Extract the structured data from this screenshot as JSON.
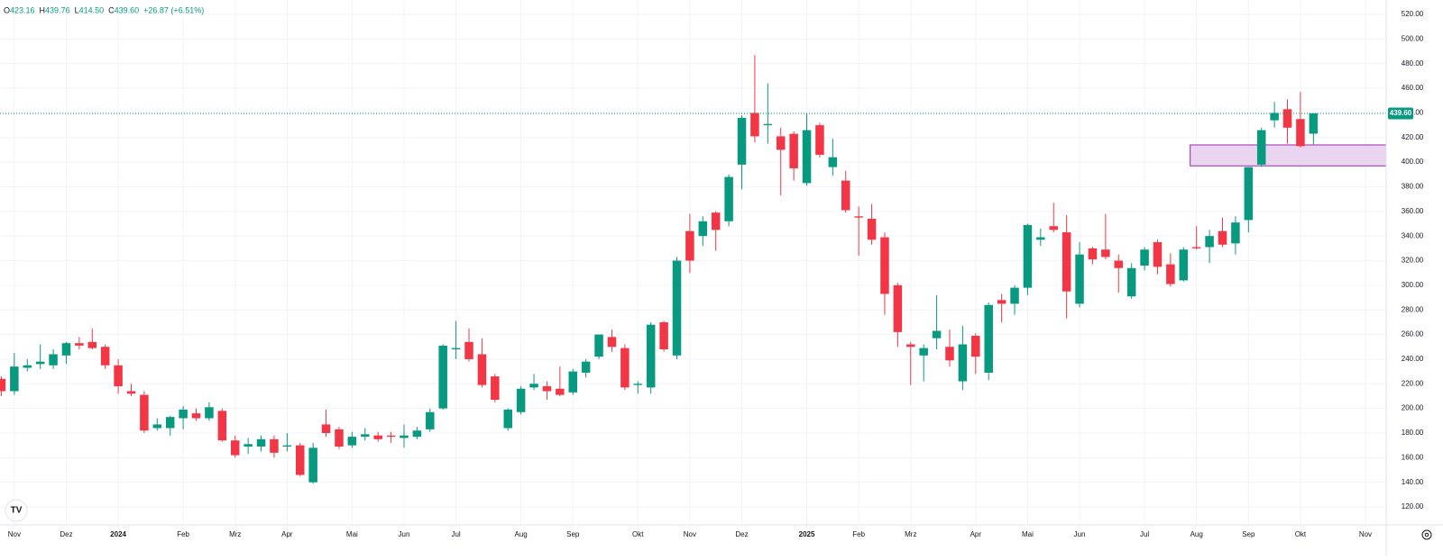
{
  "chart_data": {
    "type": "candlestick",
    "header": [
      {
        "key": "O",
        "value": "423.16"
      },
      {
        "key": "H",
        "value": "439.76"
      },
      {
        "key": "L",
        "value": "414.50"
      },
      {
        "key": "C",
        "value": "439.60"
      }
    ],
    "change": "+26.87 (+6.51%)",
    "up_color": "#089981",
    "down_color": "#f23645",
    "open": [
      224,
      214,
      233,
      236,
      235,
      243,
      253,
      254,
      250,
      235,
      214,
      211,
      184,
      184,
      192,
      196,
      192,
      198,
      174,
      169,
      169,
      175,
      169,
      170,
      140,
      187,
      183,
      170,
      177,
      178,
      178,
      176,
      177,
      183,
      200,
      248,
      254,
      244,
      226,
      184,
      197,
      217,
      218,
      216,
      213,
      229,
      242,
      258,
      249,
      219,
      217,
      270,
      243,
      344,
      340,
      359,
      352,
      398,
      440,
      430,
      421,
      423,
      383,
      430,
      396,
      385,
      356,
      354,
      339,
      300,
      252,
      243,
      257,
      250,
      222,
      259,
      229,
      288,
      285,
      298,
      337,
      348,
      343,
      285,
      330,
      329,
      320,
      291,
      316,
      335,
      317,
      304,
      331,
      331,
      344,
      334,
      353,
      398,
      434,
      443,
      435,
      423.16
    ],
    "high": [
      226,
      245,
      240,
      252,
      248,
      254,
      258,
      265,
      252,
      240,
      220,
      214,
      192,
      194,
      202,
      200,
      205,
      200,
      178,
      176,
      178,
      178,
      180,
      172,
      172,
      199,
      185,
      181,
      184,
      181,
      181,
      187,
      185,
      200,
      252,
      271,
      265,
      257,
      228,
      200,
      218,
      228,
      222,
      234,
      232,
      240,
      260,
      264,
      252,
      222,
      270,
      271,
      323,
      358,
      356,
      360,
      390,
      438,
      487,
      464,
      428,
      425,
      440,
      432,
      419,
      393,
      364,
      366,
      343,
      302,
      254,
      252,
      292,
      264,
      267,
      261,
      286,
      293,
      300,
      350,
      346,
      367,
      357,
      335,
      331,
      358,
      325,
      318,
      331,
      337,
      326,
      331,
      348,
      345,
      355,
      356,
      396,
      428,
      449,
      451,
      457,
      439.76
    ],
    "low": [
      210,
      211,
      230,
      232,
      232,
      236,
      248,
      248,
      232,
      212,
      210,
      180,
      182,
      178,
      183,
      190,
      190,
      173,
      160,
      163,
      165,
      160,
      165,
      145,
      139,
      177,
      167,
      168,
      174,
      173,
      172,
      168,
      175,
      181,
      199,
      240,
      238,
      217,
      205,
      182,
      195,
      215,
      207,
      210,
      211,
      225,
      240,
      246,
      215,
      212,
      212,
      246,
      240,
      310,
      332,
      328,
      348,
      378,
      416,
      415,
      373,
      385,
      381,
      404,
      389,
      359,
      324,
      333,
      276,
      250,
      219,
      222,
      248,
      234,
      215,
      228,
      223,
      270,
      276,
      292,
      332,
      343,
      273,
      282,
      317,
      321,
      294,
      289,
      312,
      309,
      299,
      303,
      329,
      318,
      331,
      325,
      343,
      396,
      428,
      415,
      412,
      414.5
    ],
    "close": [
      214,
      234,
      235,
      238,
      244,
      253,
      251,
      249,
      235,
      218,
      212,
      182,
      187,
      193,
      199,
      192,
      201,
      174,
      162,
      171,
      175,
      164,
      170,
      146,
      168,
      180,
      169,
      177,
      179,
      175,
      177,
      178,
      182,
      197,
      251,
      249,
      240,
      219,
      207,
      199,
      216,
      220,
      214,
      211,
      230,
      238,
      260,
      250,
      217,
      220,
      268,
      248,
      320,
      320,
      352,
      345,
      388,
      436,
      421,
      431,
      410,
      395,
      426,
      406,
      404,
      361,
      355,
      337,
      293,
      262,
      250,
      249,
      263,
      239,
      252,
      242,
      284,
      285,
      298,
      349,
      339,
      345,
      295,
      325,
      321,
      323,
      314,
      314,
      329,
      315,
      301,
      329,
      330,
      340,
      333,
      351,
      396,
      426,
      440,
      428,
      413,
      439.6
    ],
    "xlim": [
      -0.1,
      106.6
    ],
    "xticks": [
      {
        "value": 1,
        "label": "Nov"
      },
      {
        "value": 5,
        "label": "Dez"
      },
      {
        "value": 9,
        "label": "2024"
      },
      {
        "value": 14,
        "label": "Feb"
      },
      {
        "value": 18,
        "label": "Mrz"
      },
      {
        "value": 22,
        "label": "Apr"
      },
      {
        "value": 27,
        "label": "Mai"
      },
      {
        "value": 31,
        "label": "Jun"
      },
      {
        "value": 35,
        "label": "Jul"
      },
      {
        "value": 40,
        "label": "Aug"
      },
      {
        "value": 44,
        "label": "Sep"
      },
      {
        "value": 49,
        "label": "Okt"
      },
      {
        "value": 53,
        "label": "Nov"
      },
      {
        "value": 57,
        "label": "Dez"
      },
      {
        "value": 62,
        "label": "2025"
      },
      {
        "value": 66,
        "label": "Feb"
      },
      {
        "value": 70,
        "label": "Mrz"
      },
      {
        "value": 75,
        "label": "Apr"
      },
      {
        "value": 79,
        "label": "Mai"
      },
      {
        "value": 83,
        "label": "Jun"
      },
      {
        "value": 88,
        "label": "Jul"
      },
      {
        "value": 92,
        "label": "Aug"
      },
      {
        "value": 96,
        "label": "Sep"
      },
      {
        "value": 100,
        "label": "Okt"
      },
      {
        "value": 105,
        "label": "Nov"
      }
    ],
    "ylim": [
      105.4,
      531.7
    ],
    "yticks": [
      {
        "value": 120,
        "label": "120.00"
      },
      {
        "value": 140,
        "label": "140.00"
      },
      {
        "value": 160,
        "label": "160.00"
      },
      {
        "value": 180,
        "label": "180.00"
      },
      {
        "value": 200,
        "label": "200.00"
      },
      {
        "value": 220,
        "label": "220.00"
      },
      {
        "value": 240,
        "label": "240.00"
      },
      {
        "value": 260,
        "label": "260.00"
      },
      {
        "value": 280,
        "label": "280.00"
      },
      {
        "value": 300,
        "label": "300.00"
      },
      {
        "value": 320,
        "label": "320.00"
      },
      {
        "value": 340,
        "label": "340.00"
      },
      {
        "value": 360,
        "label": "360.00"
      },
      {
        "value": 380,
        "label": "380.00"
      },
      {
        "value": 400,
        "label": "400.00"
      },
      {
        "value": 420,
        "label": "420.00"
      },
      {
        "value": 440,
        "label": "440.00"
      },
      {
        "value": 460,
        "label": "460.00"
      },
      {
        "value": 480,
        "label": "480.00"
      },
      {
        "value": 500,
        "label": "500.00"
      },
      {
        "value": 520,
        "label": "520.00"
      }
    ],
    "last_price": {
      "value": 439.6,
      "label": "439.60"
    },
    "zone": {
      "from": 397,
      "to": 414,
      "start": 92,
      "fill": "#ead5f0",
      "stroke": "#9c27b0"
    },
    "grid": true
  }
}
